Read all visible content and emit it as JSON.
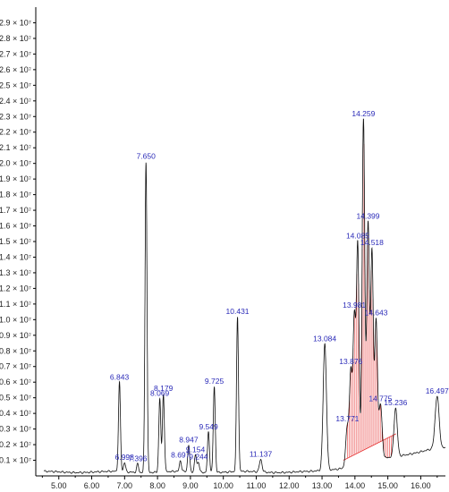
{
  "chart_data": {
    "type": "line",
    "title": "",
    "xlabel": "",
    "ylabel": "",
    "xlim": [
      4.3,
      16.75
    ],
    "ylim": [
      0,
      30000000
    ],
    "x_ticks": [
      {
        "value": 5,
        "label": "5.00"
      },
      {
        "value": 6,
        "label": "6.00"
      },
      {
        "value": 7,
        "label": "7.00"
      },
      {
        "value": 8,
        "label": "8.00"
      },
      {
        "value": 9,
        "label": "9.00"
      },
      {
        "value": 10,
        "label": "10.00"
      },
      {
        "value": 11,
        "label": "11.00"
      },
      {
        "value": 12,
        "label": "12.00"
      },
      {
        "value": 13,
        "label": "13.00"
      },
      {
        "value": 14,
        "label": "14.00"
      },
      {
        "value": 15,
        "label": "15.00"
      },
      {
        "value": 16,
        "label": "16.00"
      }
    ],
    "y_ticks": [
      {
        "value": 1000000,
        "label": "0.1 × 10⁷"
      },
      {
        "value": 2000000,
        "label": "0.2 × 10⁷"
      },
      {
        "value": 3000000,
        "label": "0.3 × 10⁷"
      },
      {
        "value": 4000000,
        "label": "0.4 × 10⁷"
      },
      {
        "value": 5000000,
        "label": "0.5 × 10⁷"
      },
      {
        "value": 6000000,
        "label": "0.6 × 10⁷"
      },
      {
        "value": 7000000,
        "label": "0.7 × 10⁷"
      },
      {
        "value": 8000000,
        "label": "0.8 × 10⁷"
      },
      {
        "value": 9000000,
        "label": "0.9 × 10⁷"
      },
      {
        "value": 10000000,
        "label": "1.0 × 10⁷"
      },
      {
        "value": 11000000,
        "label": "1.1 × 10⁷"
      },
      {
        "value": 12000000,
        "label": "1.2 × 10⁷"
      },
      {
        "value": 13000000,
        "label": "1.3 × 10⁷"
      },
      {
        "value": 14000000,
        "label": "1.4 × 10⁷"
      },
      {
        "value": 15000000,
        "label": "1.5 × 10⁷"
      },
      {
        "value": 16000000,
        "label": "1.6 × 10⁷"
      },
      {
        "value": 17000000,
        "label": "1.7 × 10⁷"
      },
      {
        "value": 18000000,
        "label": "1.8 × 10⁷"
      },
      {
        "value": 19000000,
        "label": "1.9 × 10⁷"
      },
      {
        "value": 20000000,
        "label": "2.0 × 10⁷"
      },
      {
        "value": 21000000,
        "label": "2.1 × 10⁷"
      },
      {
        "value": 22000000,
        "label": "2.2 × 10⁷"
      },
      {
        "value": 23000000,
        "label": "2.3 × 10⁷"
      },
      {
        "value": 24000000,
        "label": "2.4 × 10⁷"
      },
      {
        "value": 25000000,
        "label": "2.5 × 10⁷"
      },
      {
        "value": 26000000,
        "label": "2.6 × 10⁷"
      },
      {
        "value": 27000000,
        "label": "2.7 × 10⁷"
      },
      {
        "value": 28000000,
        "label": "2.8 × 10⁷"
      },
      {
        "value": 29000000,
        "label": "2.9 × 10⁷"
      }
    ],
    "peaks": [
      {
        "rt": 6.843,
        "label": "6.843",
        "height": 5700000,
        "width": 0.03
      },
      {
        "rt": 6.998,
        "label": "6.998",
        "height": 600000,
        "width": 0.03
      },
      {
        "rt": 7.396,
        "label": "7.396",
        "height": 550000,
        "width": 0.03
      },
      {
        "rt": 7.65,
        "label": "7.650",
        "height": 19900000,
        "width": 0.03
      },
      {
        "rt": 8.069,
        "label": "8.069",
        "height": 4700000,
        "width": 0.03
      },
      {
        "rt": 8.179,
        "label": "8.179",
        "height": 5000000,
        "width": 0.03
      },
      {
        "rt": 8.697,
        "label": "8.697",
        "height": 700000,
        "width": 0.03
      },
      {
        "rt": 8.947,
        "label": "8.947",
        "height": 1700000,
        "width": 0.03
      },
      {
        "rt": 9.154,
        "label": "9.154",
        "height": 1100000,
        "width": 0.03
      },
      {
        "rt": 9.244,
        "label": "9.244",
        "height": 650000,
        "width": 0.03
      },
      {
        "rt": 9.549,
        "label": "9.549",
        "height": 2600000,
        "width": 0.03
      },
      {
        "rt": 9.725,
        "label": "9.725",
        "height": 5500000,
        "width": 0.03
      },
      {
        "rt": 10.431,
        "label": "10.431",
        "height": 9900000,
        "width": 0.03
      },
      {
        "rt": 11.137,
        "label": "11.137",
        "height": 800000,
        "width": 0.04
      },
      {
        "rt": 13.084,
        "label": "13.084",
        "height": 8100000,
        "width": 0.05
      },
      {
        "rt": 13.771,
        "label": "13.771",
        "height": 2600000,
        "width": 0.05
      },
      {
        "rt": 13.876,
        "label": "13.876",
        "height": 5800000,
        "width": 0.04
      },
      {
        "rt": 13.981,
        "label": "13.981",
        "height": 9300000,
        "width": 0.04
      },
      {
        "rt": 14.085,
        "label": "14.085",
        "height": 14000000,
        "width": 0.04
      },
      {
        "rt": 14.259,
        "label": "14.259",
        "height": 22000000,
        "width": 0.04
      },
      {
        "rt": 14.399,
        "label": "14.399",
        "height": 15200000,
        "width": 0.04
      },
      {
        "rt": 14.518,
        "label": "14.518",
        "height": 13400000,
        "width": 0.04
      },
      {
        "rt": 14.643,
        "label": "14.643",
        "height": 8900000,
        "width": 0.04
      },
      {
        "rt": 14.775,
        "label": "14.775",
        "height": 3500000,
        "width": 0.05
      },
      {
        "rt": 15.236,
        "label": "15.236",
        "height": 3100000,
        "width": 0.05
      },
      {
        "rt": 16.497,
        "label": "16.497",
        "height": 3300000,
        "width": 0.06
      }
    ],
    "colors": {
      "trace": "#111111",
      "peak_label": "#2a2ab8",
      "integration_line": "#e63030"
    }
  }
}
